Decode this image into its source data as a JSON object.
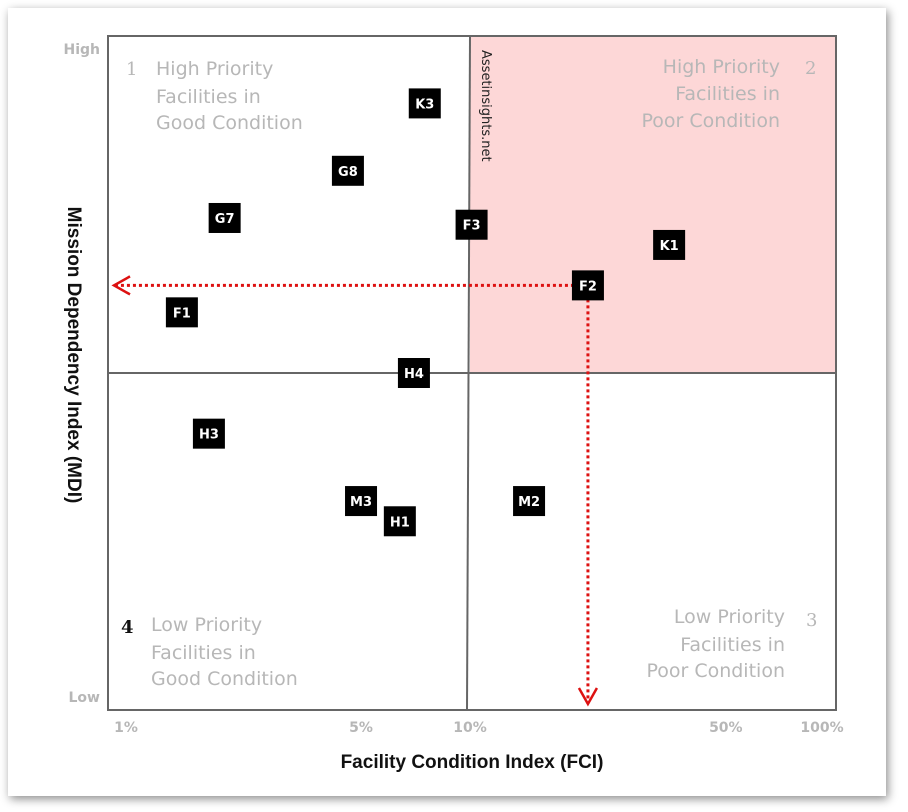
{
  "chart_data": {
    "type": "scatter",
    "xscale": "log",
    "xlabel": "Facility Condition Index (FCI)",
    "ylabel": "Mission Dependency Index (MDI)",
    "xlim": [
      1,
      100
    ],
    "ylim": [
      0,
      100
    ],
    "x_ticks": [
      {
        "value": 1,
        "label": "1%"
      },
      {
        "value": 5,
        "label": "5%"
      },
      {
        "value": 10,
        "label": "10%"
      },
      {
        "value": 50,
        "label": "50%"
      },
      {
        "value": 100,
        "label": "100%"
      }
    ],
    "y_ticks": [
      {
        "value": 100,
        "label": "High"
      },
      {
        "value": 0,
        "label": "Low"
      }
    ],
    "threshold_x": 10,
    "threshold_y": 50,
    "points": [
      {
        "label": "K3",
        "x": 7.5,
        "y": 90
      },
      {
        "label": "G8",
        "x": 4.6,
        "y": 80
      },
      {
        "label": "G7",
        "x": 2.1,
        "y": 73
      },
      {
        "label": "F3",
        "x": 10.1,
        "y": 72
      },
      {
        "label": "K1",
        "x": 35,
        "y": 69
      },
      {
        "label": "F2",
        "x": 21,
        "y": 63
      },
      {
        "label": "F1",
        "x": 1.6,
        "y": 59
      },
      {
        "label": "H4",
        "x": 7.0,
        "y": 50
      },
      {
        "label": "H3",
        "x": 1.9,
        "y": 41
      },
      {
        "label": "M2",
        "x": 14.5,
        "y": 31
      },
      {
        "label": "M3",
        "x": 5.0,
        "y": 31
      },
      {
        "label": "H1",
        "x": 6.4,
        "y": 28
      }
    ],
    "highlight_point": "F2",
    "annotations": {
      "watermark": "Assetinsights.net"
    }
  },
  "quadrants": {
    "q1": {
      "number": "1",
      "lines": [
        "High Priority",
        "Facilities in",
        "Good Condition"
      ]
    },
    "q2": {
      "number": "2",
      "lines": [
        "High Priority",
        "Facilities in",
        "Poor Condition"
      ]
    },
    "q3": {
      "number": "3",
      "lines": [
        "Low Priority",
        "Facilities in",
        "Poor Condition"
      ]
    },
    "q4": {
      "number": "4",
      "lines": [
        "Low Priority",
        "Facilities in",
        "Good Condition"
      ]
    }
  },
  "colors": {
    "highlight_fill": "#fdd7d7",
    "arrow": "#dd1111",
    "point_fill": "#000000",
    "grid": "#666666"
  }
}
